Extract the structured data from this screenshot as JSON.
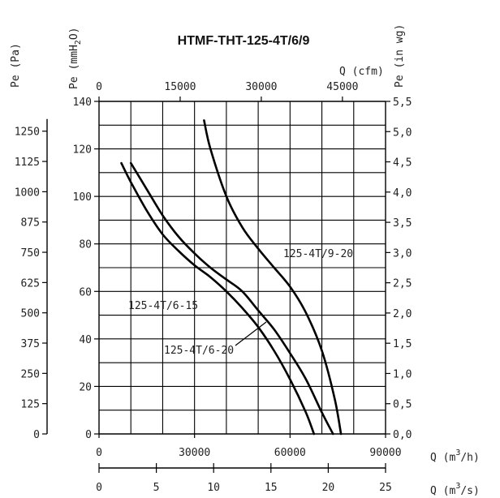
{
  "chart_data": {
    "type": "line",
    "title": "HTMF-THT-125-4T/6/9",
    "x_axes": {
      "m3h": {
        "label_prefix": "Q (m",
        "label_suffix": "/h)",
        "ticks": [
          "0",
          "30000",
          "60000",
          "90000"
        ],
        "range": [
          0,
          90000
        ]
      },
      "m3s": {
        "label_prefix": "Q (m",
        "label_suffix": "/s)",
        "ticks": [
          "0",
          "5",
          "10",
          "15",
          "20",
          "25"
        ],
        "range": [
          0,
          25
        ]
      },
      "cfm": {
        "label": "Q (cfm)",
        "ticks": [
          "0",
          "15000",
          "30000",
          "45000"
        ],
        "range": [
          0,
          52972
        ]
      }
    },
    "y_axes": {
      "mmH2O": {
        "label_prefix": "Pe (mmH",
        "label_mid": "2",
        "label_suffix": "O)",
        "ticks": [
          "0",
          "20",
          "40",
          "60",
          "80",
          "100",
          "120",
          "140"
        ],
        "range": [
          0,
          140
        ]
      },
      "Pa": {
        "label": "Pe (Pa)",
        "ticks": [
          "0",
          "125",
          "250",
          "375",
          "500",
          "625",
          "750",
          "875",
          "1000",
          "1125",
          "1250"
        ],
        "range": [
          0,
          1373
        ]
      },
      "inwg": {
        "label": "Pe (in wg)",
        "ticks": [
          "0,0",
          "0,5",
          "1,0",
          "1,5",
          "2,0",
          "2,5",
          "3,0",
          "3,5",
          "4,0",
          "4,5",
          "5,0",
          "5,5"
        ],
        "range": [
          0,
          5.5
        ]
      }
    },
    "series": [
      {
        "name": "125-4T/6-15",
        "x_unit": "m3/h",
        "x": [
          7000,
          10000,
          15000,
          20000,
          25000,
          30000,
          35000,
          40000,
          45000,
          50000,
          55000,
          60000,
          65000,
          67500
        ],
        "y": [
          114,
          106,
          94,
          84,
          77,
          71,
          66,
          60,
          53,
          45,
          35,
          23,
          9,
          0
        ]
      },
      {
        "name": "125-4T/6-20",
        "x_unit": "m3/h",
        "x": [
          10000,
          15000,
          20000,
          25000,
          30000,
          35000,
          40000,
          45000,
          50000,
          55000,
          60000,
          65000,
          70000,
          73500
        ],
        "y": [
          114,
          103,
          92,
          83,
          76,
          70,
          65,
          60,
          52,
          44,
          34,
          23,
          9,
          0
        ]
      },
      {
        "name": "125-4T/9-20",
        "x_unit": "m3/h",
        "x": [
          33000,
          35000,
          40000,
          45000,
          50000,
          55000,
          60000,
          65000,
          70000,
          74000,
          76000
        ],
        "y": [
          132,
          120,
          100,
          87,
          78,
          70,
          62,
          51,
          35,
          15,
          0
        ]
      }
    ],
    "curve_labels": [
      "125-4T/9-20",
      "125-4T/6-15",
      "125-4T/6-20"
    ],
    "grid": true
  }
}
